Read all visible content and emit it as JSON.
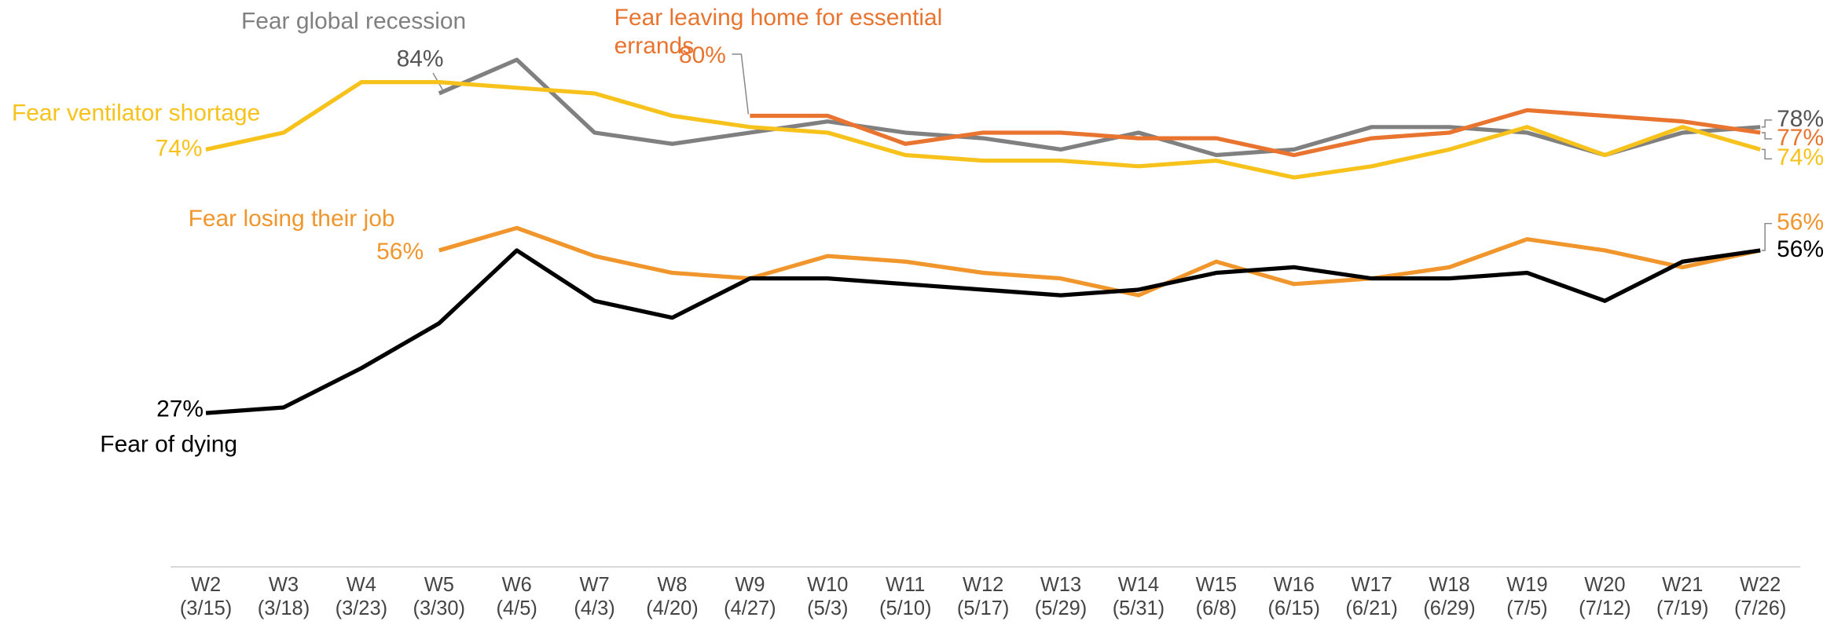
{
  "chart_data": {
    "type": "line",
    "categories": [
      "W2 (3/15)",
      "W3 (3/18)",
      "W4 (3/23)",
      "W5 (3/30)",
      "W6 (4/5)",
      "W7 (4/3)",
      "W8 (4/20)",
      "W9 (4/27)",
      "W10 (5/3)",
      "W11 (5/10)",
      "W12 (5/17)",
      "W13 (5/29)",
      "W14 (5/31)",
      "W15 (6/8)",
      "W16 (6/15)",
      "W17 (6/21)",
      "W18 (6/29)",
      "W19 (7/5)",
      "W20 (7/12)",
      "W21 (7/19)",
      "W22 (7/26)"
    ],
    "ylim": [
      0,
      100
    ],
    "series": [
      {
        "name": "Fear global recession",
        "color": "#808080",
        "values": [
          null,
          null,
          null,
          84,
          90,
          77,
          75,
          77,
          79,
          77,
          76,
          74,
          77,
          73,
          74,
          78,
          78,
          77,
          73,
          77,
          78
        ],
        "value_labels": [
          null,
          null,
          null,
          "84%",
          null,
          null,
          null,
          null,
          null,
          null,
          null,
          null,
          null,
          null,
          null,
          null,
          null,
          null,
          null,
          null,
          "78%"
        ]
      },
      {
        "name": "Fear leaving home for essential errands",
        "color": "#e8742f",
        "values": [
          null,
          null,
          null,
          null,
          null,
          null,
          null,
          80,
          80,
          75,
          77,
          77,
          76,
          76,
          73,
          76,
          77,
          81,
          80,
          79,
          77
        ],
        "value_labels": [
          null,
          null,
          null,
          null,
          null,
          null,
          null,
          "80%",
          null,
          null,
          null,
          null,
          null,
          null,
          null,
          null,
          null,
          null,
          null,
          null,
          "77%"
        ]
      },
      {
        "name": "Fear ventilator shortage",
        "color": "#f7c21b",
        "values": [
          74,
          77,
          86,
          86,
          85,
          84,
          80,
          78,
          77,
          73,
          72,
          72,
          71,
          72,
          69,
          71,
          74,
          78,
          73,
          78,
          74
        ],
        "value_labels": [
          "74%",
          null,
          null,
          null,
          null,
          null,
          null,
          null,
          null,
          null,
          null,
          null,
          null,
          null,
          null,
          null,
          null,
          null,
          null,
          null,
          "74%"
        ]
      },
      {
        "name": "Fear losing their job",
        "color": "#f0962c",
        "values": [
          null,
          null,
          null,
          56,
          60,
          55,
          52,
          51,
          55,
          54,
          52,
          51,
          48,
          54,
          50,
          51,
          53,
          58,
          56,
          53,
          56
        ],
        "value_labels": [
          null,
          null,
          null,
          "56%",
          null,
          null,
          null,
          null,
          null,
          null,
          null,
          null,
          null,
          null,
          null,
          null,
          null,
          null,
          null,
          null,
          "56%"
        ]
      },
      {
        "name": "Fear of dying",
        "color": "#000000",
        "values": [
          27,
          28,
          35,
          43,
          56,
          47,
          44,
          51,
          51,
          50,
          49,
          48,
          49,
          52,
          53,
          51,
          51,
          52,
          47,
          54,
          56
        ],
        "value_labels": [
          "27%",
          null,
          null,
          null,
          null,
          null,
          null,
          null,
          null,
          null,
          null,
          null,
          null,
          null,
          null,
          null,
          null,
          null,
          null,
          null,
          "56%"
        ]
      }
    ]
  }
}
